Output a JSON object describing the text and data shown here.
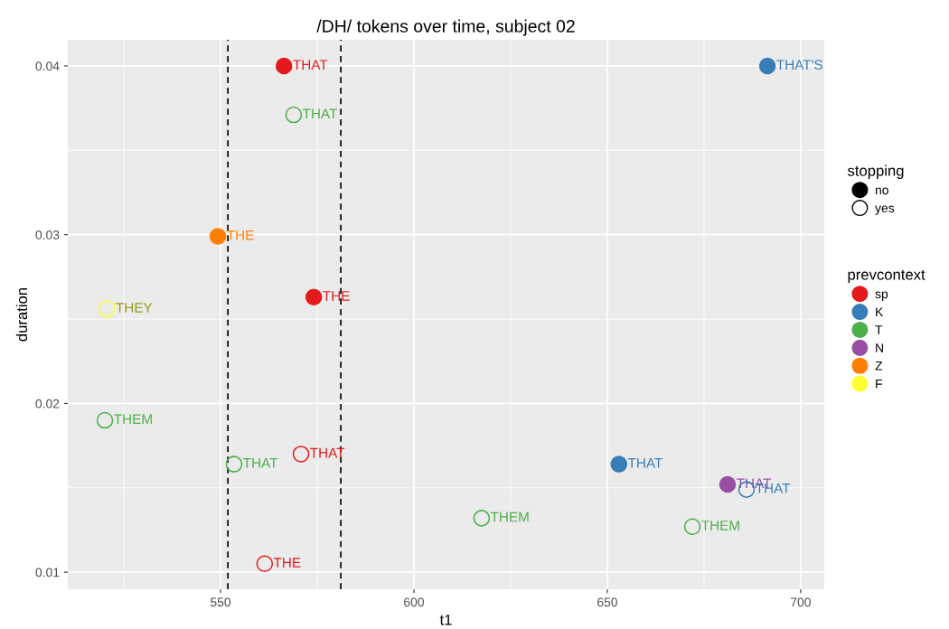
{
  "chart_data": {
    "type": "scatter",
    "title": "/DH/ tokens over time, subject 02",
    "xlabel": "t1",
    "ylabel": "duration",
    "xlim": [
      510.5,
      706.1
    ],
    "xticks": [
      550,
      600,
      650,
      700
    ],
    "ylim": [
      0.00899,
      0.04155
    ],
    "yticks": [
      0.01,
      0.02,
      0.03,
      0.04
    ],
    "grid": true,
    "legend": "right",
    "legend_title": [
      "stopping",
      "prevcontext"
    ],
    "ref_lines": [
      {
        "axis": "x",
        "value": 551.9,
        "line_style": "dashed",
        "color": "#000000"
      },
      {
        "axis": "x",
        "value": 581.1,
        "line_style": "dashed",
        "color": "#000000"
      }
    ],
    "series": [
      {
        "name": "no",
        "color": "#000000",
        "marker": "circle",
        "x": [
          566.4,
          574.1,
          691.4,
          653.0,
          681.1,
          549.3
        ],
        "values": [
          0.04,
          0.0263,
          0.04,
          0.0164,
          0.0152,
          0.0299
        ],
        "colors": [
          "#e41a1c",
          "#e41a1c",
          "#377eb8",
          "#377eb8",
          "#984ea3",
          "#ff7f00"
        ],
        "value_labels": [
          "THAT",
          "THE",
          "THAT'S",
          "THAT",
          "THAT",
          "THE"
        ]
      },
      {
        "name": "yes",
        "color": "#000000",
        "marker": "circle_open",
        "x": [
          570.8,
          561.4,
          686.0,
          568.9,
          520.1,
          553.5,
          617.5,
          672.0,
          520.6
        ],
        "values": [
          0.017,
          0.0105,
          0.0149,
          0.0371,
          0.019,
          0.0164,
          0.0132,
          0.0127,
          0.0256
        ],
        "colors": [
          "#e41a1c",
          "#e41a1c",
          "#377eb8",
          "#4daf4a",
          "#4daf4a",
          "#4daf4a",
          "#4daf4a",
          "#4daf4a",
          "#ffff33"
        ],
        "value_labels": [
          "THAT",
          "THE",
          "THAT",
          "THAT",
          "THEM",
          "THAT",
          "THEM",
          "THEM",
          "THEY"
        ]
      },
      {
        "name": "sp",
        "color": "#e41a1c"
      },
      {
        "name": "K",
        "color": "#377eb8"
      },
      {
        "name": "T",
        "color": "#4daf4a"
      },
      {
        "name": "N",
        "color": "#984ea3"
      },
      {
        "name": "Z",
        "color": "#ff7f00"
      },
      {
        "name": "F",
        "color": "#ffff33"
      }
    ]
  }
}
